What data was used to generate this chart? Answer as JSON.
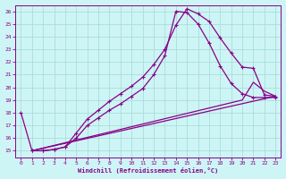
{
  "xlabel": "Windchill (Refroidissement éolien,°C)",
  "bg_color": "#cef5f5",
  "line_color": "#880088",
  "grid_color": "#aadddd",
  "xlim": [
    -0.5,
    23.5
  ],
  "ylim": [
    14.5,
    26.5
  ],
  "xticks": [
    0,
    1,
    2,
    3,
    4,
    5,
    6,
    7,
    8,
    9,
    10,
    11,
    12,
    13,
    14,
    15,
    16,
    17,
    18,
    19,
    20,
    21,
    22,
    23
  ],
  "yticks": [
    15,
    16,
    17,
    18,
    19,
    20,
    21,
    22,
    23,
    24,
    25,
    26
  ],
  "line1_x": [
    0,
    1,
    2,
    3,
    4,
    5,
    6,
    7,
    8,
    9,
    10,
    11,
    12,
    13,
    14,
    15,
    16,
    17,
    18,
    19,
    20,
    21,
    22,
    23
  ],
  "line1_y": [
    18,
    15,
    15,
    15.1,
    15.3,
    16.4,
    17.5,
    18.2,
    18.9,
    19.5,
    20.1,
    20.8,
    21.8,
    23.0,
    24.9,
    26.2,
    25.8,
    25.2,
    23.9,
    22.7,
    21.6,
    21.5,
    19.4,
    19.3
  ],
  "line2_x": [
    1,
    2,
    3,
    4,
    5,
    6,
    7,
    8,
    9,
    10,
    11,
    12,
    13,
    14,
    15,
    16,
    17,
    18,
    19,
    20,
    21,
    22,
    23
  ],
  "line2_y": [
    15,
    15,
    15.1,
    15.3,
    16.0,
    17.0,
    17.6,
    18.2,
    18.7,
    19.3,
    19.9,
    21.0,
    22.5,
    26.0,
    25.9,
    25.0,
    23.5,
    21.7,
    20.3,
    19.5,
    19.2,
    19.2,
    19.2
  ],
  "line3_x": [
    1,
    23
  ],
  "line3_y": [
    15,
    19.3
  ],
  "line4_x": [
    1,
    20,
    21,
    22,
    23
  ],
  "line4_y": [
    15,
    19.0,
    20.4,
    19.7,
    19.3
  ]
}
